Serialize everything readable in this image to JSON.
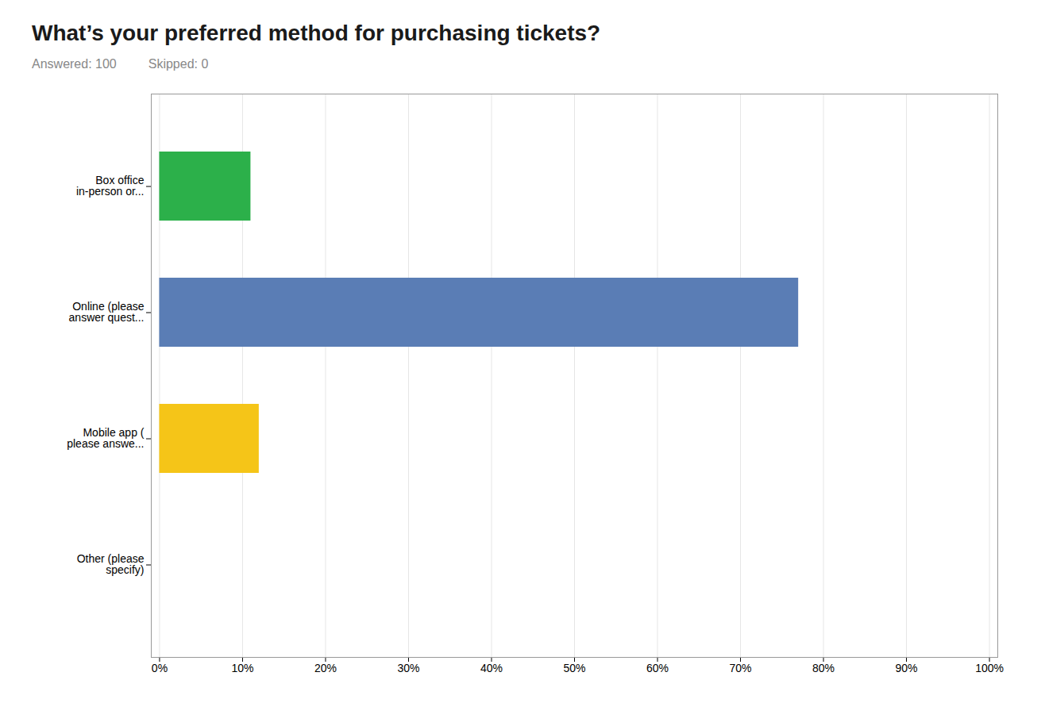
{
  "chart_data": {
    "type": "bar",
    "orientation": "horizontal",
    "title": "What’s your preferred method for purchasing tickets?",
    "subtitle": [
      "Answered: 100",
      "Skipped: 0"
    ],
    "categories": [
      "Box office\nin-person or...",
      "Online (please\nanswer quest...",
      "Mobile app (\nplease answe...",
      "Other (please\nspecify)"
    ],
    "values": [
      11,
      77,
      12,
      0
    ],
    "colors": [
      "#2cb04a",
      "#5a7db5",
      "#f5c518",
      "#aaaaaa"
    ],
    "xlim": [
      -1,
      101
    ],
    "xticks": [
      {
        "value": 0,
        "label": "0%"
      },
      {
        "value": 10,
        "label": "10%"
      },
      {
        "value": 20,
        "label": "20%"
      },
      {
        "value": 30,
        "label": "30%"
      },
      {
        "value": 40,
        "label": "40%"
      },
      {
        "value": 50,
        "label": "50%"
      },
      {
        "value": 60,
        "label": "60%"
      },
      {
        "value": 70,
        "label": "70%"
      },
      {
        "value": 80,
        "label": "80%"
      },
      {
        "value": 90,
        "label": "90%"
      },
      {
        "value": 100,
        "label": "100%"
      }
    ],
    "grid": true
  }
}
